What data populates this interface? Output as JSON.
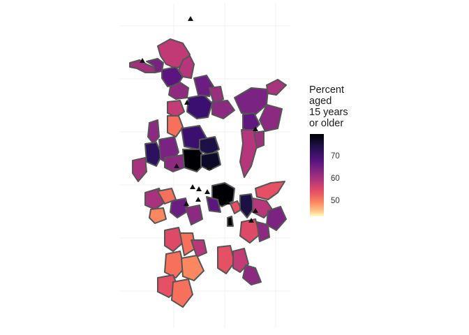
{
  "legend": {
    "title_lines": [
      "Percent",
      "aged",
      "15 years",
      "or older"
    ],
    "ticks": [
      "70",
      "60",
      "50"
    ],
    "scale": "magma (inferno-like), dark = high, light = low",
    "range": [
      45,
      78
    ]
  },
  "colors": {
    "region_border": "#555555",
    "landmark": "#111111",
    "grid": "#f2f2f2",
    "palette": [
      "#000004",
      "#3b0f70",
      "#8c2981",
      "#b73779",
      "#de4968",
      "#f7705c",
      "#fe9f6d",
      "#fcfdbf"
    ]
  },
  "map": {
    "landmark_symbol": "triangle",
    "landmark_count": 14
  }
}
